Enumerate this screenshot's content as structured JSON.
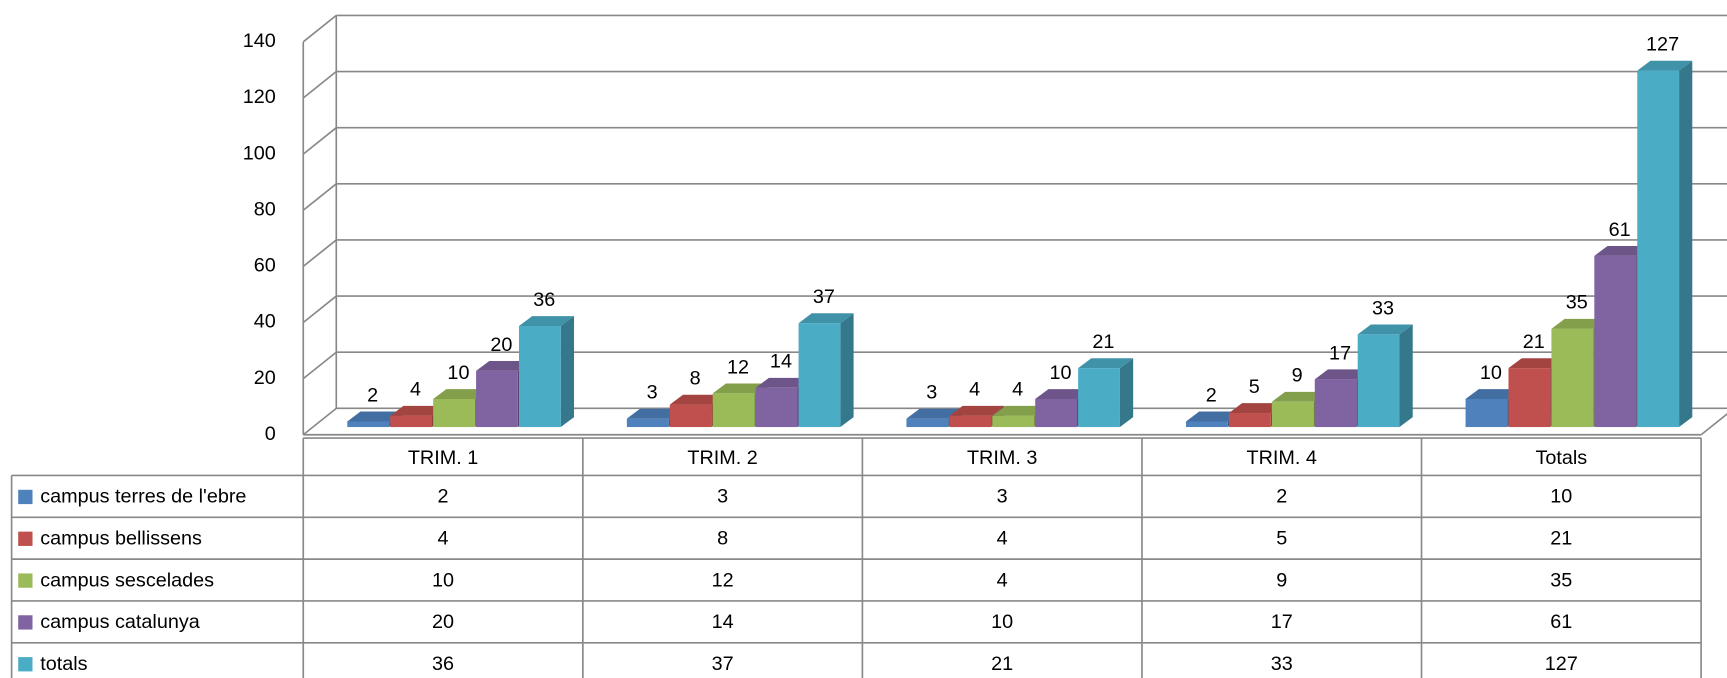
{
  "chart_data": {
    "type": "bar3d",
    "categories": [
      "TRIM. 1",
      "TRIM. 2",
      "TRIM. 3",
      "TRIM. 4",
      "Totals"
    ],
    "series": [
      {
        "name": "campus terres de l'ebre",
        "color": "#4f81bd",
        "values": [
          2,
          3,
          3,
          2,
          10
        ]
      },
      {
        "name": "campus bellissens",
        "color": "#c0504d",
        "values": [
          4,
          8,
          4,
          5,
          21
        ]
      },
      {
        "name": "campus sescelades",
        "color": "#9bbb59",
        "values": [
          10,
          12,
          4,
          9,
          35
        ]
      },
      {
        "name": "campus catalunya",
        "color": "#8064a2",
        "values": [
          20,
          14,
          10,
          17,
          61
        ]
      },
      {
        "name": "totals",
        "color": "#4bacc6",
        "values": [
          36,
          37,
          21,
          33,
          127
        ]
      }
    ],
    "ylim": [
      0,
      140
    ],
    "yticks": [
      0,
      20,
      40,
      60,
      80,
      100,
      120,
      140
    ],
    "grid": true,
    "data_table": true
  }
}
